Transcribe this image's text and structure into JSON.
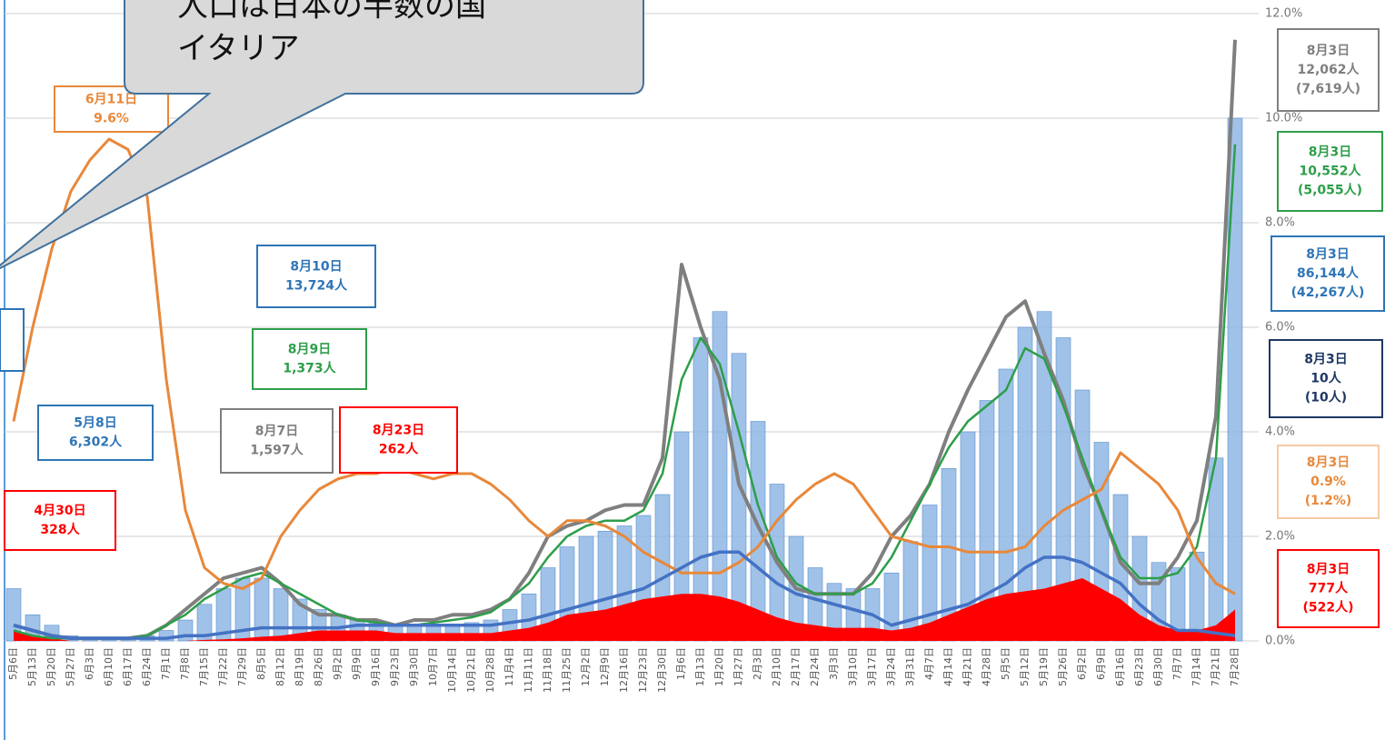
{
  "callout": {
    "lines": [
      "人口は日本の半数の国",
      "イタリア"
    ]
  },
  "chart_data": {
    "type": "combo",
    "categories": [
      "5月6日",
      "5月13日",
      "5月20日",
      "5月27日",
      "6月3日",
      "6月10日",
      "6月17日",
      "6月24日",
      "7月1日",
      "7月8日",
      "7月15日",
      "7月22日",
      "7月29日",
      "8月5日",
      "8月12日",
      "8月19日",
      "8月26日",
      "9月2日",
      "9月9日",
      "9月16日",
      "9月23日",
      "9月30日",
      "10月7日",
      "10月14日",
      "10月21日",
      "10月28日",
      "11月4日",
      "11月11日",
      "11月18日",
      "11月25日",
      "12月2日",
      "12月9日",
      "12月16日",
      "12月23日",
      "12月30日",
      "1月6日",
      "1月13日",
      "1月20日",
      "1月27日",
      "2月3日",
      "2月10日",
      "2月17日",
      "2月24日",
      "3月3日",
      "3月10日",
      "3月17日",
      "3月24日",
      "3月31日",
      "4月7日",
      "4月14日",
      "4月21日",
      "4月28日",
      "5月5日",
      "5月12日",
      "5月19日",
      "5月26日",
      "6月2日",
      "6月9日",
      "6月16日",
      "6月23日",
      "6月30日",
      "7月7日",
      "7月14日",
      "7月21日",
      "7月28日"
    ],
    "ylim": [
      0,
      12
    ],
    "yticks": [
      {
        "value": 0,
        "label": "0.0%"
      },
      {
        "value": 2,
        "label": "2.0%"
      },
      {
        "value": 4,
        "label": "4.0%"
      },
      {
        "value": 6,
        "label": "6.0%"
      },
      {
        "value": 8,
        "label": "8.0%"
      },
      {
        "value": 10,
        "label": "10.0%"
      },
      {
        "value": 12,
        "label": "12.0%"
      }
    ],
    "grid": true,
    "series": [
      {
        "kind": "bar",
        "color": "#8fb7e4",
        "values": [
          1.0,
          0.5,
          0.3,
          0.1,
          0.05,
          0.05,
          0.05,
          0.1,
          0.2,
          0.4,
          0.7,
          1.0,
          1.2,
          1.2,
          1.0,
          0.8,
          0.6,
          0.5,
          0.4,
          0.35,
          0.3,
          0.3,
          0.3,
          0.3,
          0.35,
          0.4,
          0.6,
          0.9,
          1.4,
          1.8,
          2.0,
          2.1,
          2.2,
          2.4,
          2.8,
          4.0,
          5.8,
          6.3,
          5.5,
          4.2,
          3.0,
          2.0,
          1.4,
          1.1,
          1.0,
          1.0,
          1.3,
          1.9,
          2.6,
          3.3,
          4.0,
          4.6,
          5.2,
          6.0,
          6.3,
          5.8,
          4.8,
          3.8,
          2.8,
          2.0,
          1.5,
          1.4,
          1.7,
          3.5,
          10.0
        ]
      },
      {
        "kind": "area",
        "color": "#ff0000",
        "values": [
          0.2,
          0.1,
          0.05,
          0,
          0,
          0,
          0,
          0,
          0,
          0,
          0.02,
          0.03,
          0.05,
          0.08,
          0.1,
          0.15,
          0.2,
          0.2,
          0.2,
          0.2,
          0.15,
          0.15,
          0.15,
          0.15,
          0.15,
          0.15,
          0.2,
          0.25,
          0.35,
          0.5,
          0.55,
          0.6,
          0.7,
          0.8,
          0.85,
          0.9,
          0.9,
          0.85,
          0.75,
          0.6,
          0.45,
          0.35,
          0.3,
          0.25,
          0.25,
          0.25,
          0.2,
          0.25,
          0.35,
          0.5,
          0.65,
          0.8,
          0.9,
          0.95,
          1.0,
          1.1,
          1.2,
          1.0,
          0.8,
          0.5,
          0.3,
          0.2,
          0.2,
          0.3,
          0.6
        ]
      },
      {
        "kind": "line",
        "color": "#7f7f7f",
        "width": 4,
        "values": [
          0.3,
          0.2,
          0.1,
          0.05,
          0.05,
          0.05,
          0.05,
          0.1,
          0.3,
          0.6,
          0.9,
          1.2,
          1.3,
          1.4,
          1.1,
          0.7,
          0.5,
          0.5,
          0.4,
          0.4,
          0.3,
          0.4,
          0.4,
          0.5,
          0.5,
          0.6,
          0.8,
          1.3,
          2.0,
          2.2,
          2.3,
          2.5,
          2.6,
          2.6,
          3.5,
          7.2,
          6.0,
          5.0,
          3.0,
          2.2,
          1.5,
          1.0,
          0.9,
          0.9,
          0.9,
          1.3,
          2.0,
          2.4,
          3.0,
          4.0,
          4.8,
          5.5,
          6.2,
          6.5,
          5.5,
          4.6,
          3.4,
          2.5,
          1.5,
          1.1,
          1.1,
          1.6,
          2.3,
          4.3,
          11.5
        ]
      },
      {
        "kind": "line",
        "color": "#2e9e4a",
        "width": 2.5,
        "values": [
          0.2,
          0.1,
          0.05,
          0.05,
          0.05,
          0.05,
          0.05,
          0.1,
          0.3,
          0.5,
          0.8,
          1.0,
          1.2,
          1.3,
          1.1,
          0.9,
          0.7,
          0.5,
          0.4,
          0.35,
          0.3,
          0.3,
          0.35,
          0.4,
          0.45,
          0.55,
          0.8,
          1.1,
          1.6,
          2.0,
          2.2,
          2.3,
          2.3,
          2.5,
          3.2,
          5.0,
          5.8,
          5.3,
          4.0,
          2.6,
          1.6,
          1.1,
          0.9,
          0.9,
          0.9,
          1.1,
          1.6,
          2.3,
          3.0,
          3.7,
          4.2,
          4.5,
          4.8,
          5.6,
          5.4,
          4.5,
          3.5,
          2.5,
          1.6,
          1.2,
          1.2,
          1.3,
          1.8,
          3.5,
          9.5
        ]
      },
      {
        "kind": "line",
        "color": "#e8883a",
        "width": 3,
        "values": [
          4.2,
          6.0,
          7.5,
          8.6,
          9.2,
          9.6,
          9.4,
          8.5,
          5.0,
          2.5,
          1.4,
          1.1,
          1.0,
          1.2,
          2.0,
          2.5,
          2.9,
          3.1,
          3.2,
          3.2,
          3.3,
          3.2,
          3.1,
          3.2,
          3.2,
          3.0,
          2.7,
          2.3,
          2.0,
          2.3,
          2.3,
          2.2,
          2.0,
          1.7,
          1.5,
          1.3,
          1.3,
          1.3,
          1.5,
          1.8,
          2.3,
          2.7,
          3.0,
          3.2,
          3.0,
          2.5,
          2.0,
          1.9,
          1.8,
          1.8,
          1.7,
          1.7,
          1.7,
          1.8,
          2.2,
          2.5,
          2.7,
          2.9,
          3.6,
          3.3,
          3.0,
          2.5,
          1.6,
          1.1,
          0.9
        ]
      },
      {
        "kind": "line",
        "color": "#4472c4",
        "width": 3.5,
        "values": [
          0.3,
          0.2,
          0.1,
          0.05,
          0.05,
          0.05,
          0.05,
          0.05,
          0.05,
          0.1,
          0.1,
          0.15,
          0.2,
          0.25,
          0.25,
          0.25,
          0.25,
          0.25,
          0.3,
          0.3,
          0.3,
          0.3,
          0.3,
          0.3,
          0.3,
          0.3,
          0.35,
          0.4,
          0.5,
          0.6,
          0.7,
          0.8,
          0.9,
          1.0,
          1.2,
          1.4,
          1.6,
          1.7,
          1.7,
          1.4,
          1.1,
          0.9,
          0.8,
          0.7,
          0.6,
          0.5,
          0.3,
          0.4,
          0.5,
          0.6,
          0.7,
          0.9,
          1.1,
          1.4,
          1.6,
          1.6,
          1.5,
          1.3,
          1.1,
          0.7,
          0.4,
          0.2,
          0.2,
          0.15,
          0.1
        ]
      }
    ],
    "annotations": [
      {
        "lines": [
          "6月11日",
          "9.6%"
        ],
        "color": "#e8883a"
      },
      {
        "lines": [
          "8月10日",
          "13,724人"
        ],
        "color": "#2e75b6"
      },
      {
        "lines": [
          "8月9日",
          "1,373人"
        ],
        "color": "#2e9e4a"
      },
      {
        "lines": [
          "5月8日",
          "6,302人"
        ],
        "color": "#2e75b6"
      },
      {
        "lines": [
          "8月7日",
          "1,597人"
        ],
        "color": "#7f7f7f"
      },
      {
        "lines": [
          "8月23日",
          "262人"
        ],
        "color": "#ff0000"
      },
      {
        "lines": [
          "4月30日",
          "328人"
        ],
        "color": "#ff0000"
      },
      {
        "lines": [
          "8月3日",
          "12,062人",
          "(7,619人)"
        ],
        "color": "#7f7f7f"
      },
      {
        "lines": [
          "8月3日",
          "10,552人",
          "(5,055人)"
        ],
        "color": "#2e9e4a"
      },
      {
        "lines": [
          "8月3日",
          "86,144人",
          "(42,267人)"
        ],
        "color": "#2e75b6"
      },
      {
        "lines": [
          "8月3日",
          "10人",
          "(10人)"
        ],
        "color": "#1f3864"
      },
      {
        "lines": [
          "8月3日",
          "0.9%",
          "(1.2%)"
        ],
        "color": "#e8883a"
      },
      {
        "lines": [
          "8月3日",
          "777人",
          "(522人)"
        ],
        "color": "#ff0000"
      }
    ]
  }
}
